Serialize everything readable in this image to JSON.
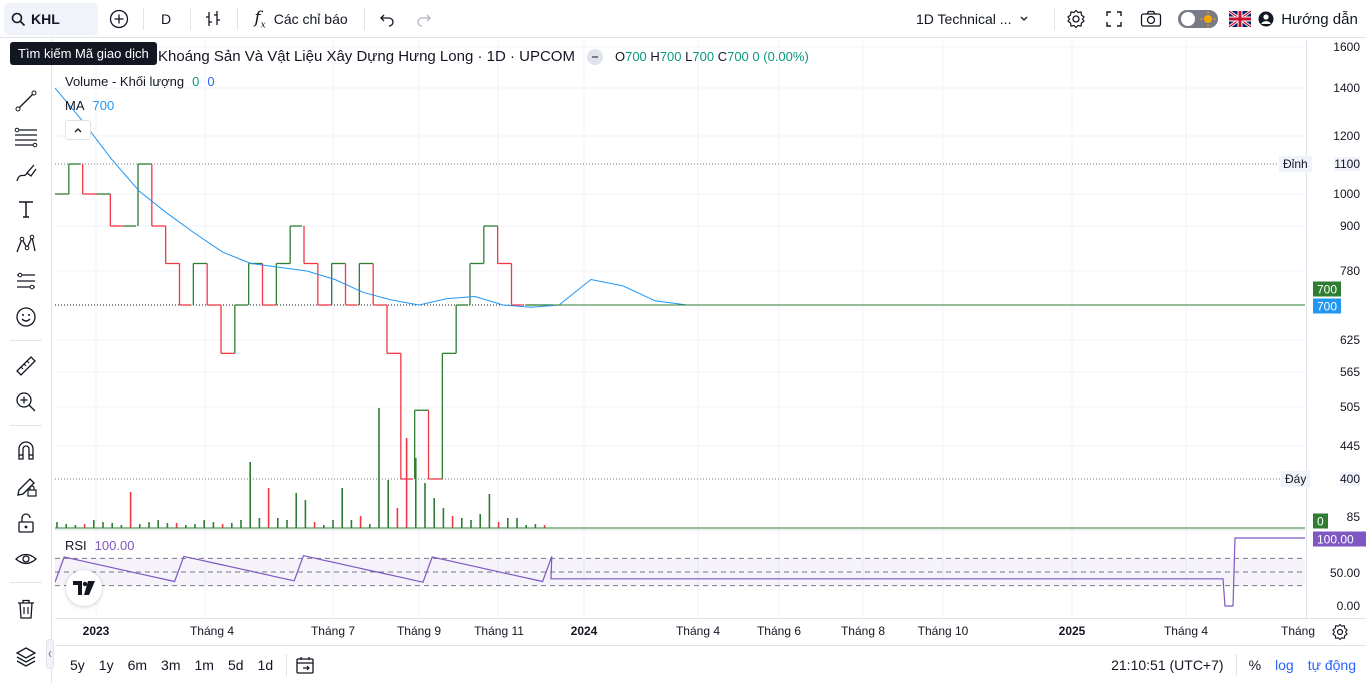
{
  "toolbar": {
    "symbol": "KHL",
    "interval": "D",
    "indicators_label": "Các chỉ báo",
    "layout_name": "1D Technical ...",
    "help_label": "Hướng dẫn",
    "tooltip": "Tìm kiếm Mã giao dịch"
  },
  "legend": {
    "title": "Khoáng Sản Và Vật Liệu Xây Dựng Hưng Long · 1D · UPCOM",
    "o_label": "O",
    "o": "700",
    "h_label": "H",
    "h": "700",
    "l_label": "L",
    "l": "700",
    "c_label": "C",
    "c": "700",
    "change": "0 (0.00%)"
  },
  "volume_legend": {
    "label": "Volume - Khối lượng",
    "v1": "0",
    "v2": "0"
  },
  "ma_legend": {
    "label": "MA",
    "value": "700"
  },
  "rsi_legend": {
    "label": "RSI",
    "value": "100.00"
  },
  "price_scale": {
    "ticks": [
      "1600",
      "1400",
      "1200",
      "1000",
      "900",
      "780",
      "625",
      "565",
      "505",
      "445",
      "400"
    ],
    "ticks_rsi": [
      "100.00",
      "50.00",
      "0.00"
    ],
    "high_label": "Đỉnh",
    "high_value": "1100",
    "low_label": "Đáy",
    "low_value": "400",
    "last_price": "700",
    "ma_price": "700",
    "volume_value": "0",
    "partial_tick": "85",
    "rsi_badge": "100.00"
  },
  "time_scale": [
    "2023",
    "Tháng 4",
    "Tháng 7",
    "Tháng 9",
    "Tháng 11",
    "2024",
    "Tháng 4",
    "Tháng 6",
    "Tháng 8",
    "Tháng 10",
    "2025",
    "Tháng 4",
    "Tháng"
  ],
  "bottom": {
    "ranges": [
      "5y",
      "1y",
      "6m",
      "3m",
      "1m",
      "5d",
      "1d"
    ],
    "clock": "21:10:51 (UTC+7)",
    "percent": "%",
    "log": "log",
    "auto": "tự động"
  },
  "colors": {
    "up": "#089981",
    "down": "#f23645",
    "bar_up": "#2e7d32",
    "ma": "#2196f3",
    "rsi": "#7e57c2",
    "accent": "#2962ff"
  },
  "chart_data": {
    "type": "line",
    "title": "Khoáng Sản Và Vật Liệu Xây Dựng Hưng Long · 1D · UPCOM",
    "price_range": [
      355,
      1640
    ],
    "series": [
      {
        "name": "",
        "values": [
          1000,
          1100,
          1000,
          1000,
          900,
          900,
          1100,
          900,
          800,
          700,
          800,
          700,
          600,
          700,
          800,
          700,
          800,
          900,
          800,
          700,
          800,
          700,
          800,
          700,
          600,
          400,
          500,
          400,
          600,
          700,
          800,
          900,
          800,
          700,
          700,
          700
        ]
      },
      {
        "name": "MA",
        "values": [
          1400,
          1260,
          1120,
          1010,
          940,
          880,
          830,
          800,
          790,
          780,
          760,
          730,
          712,
          700,
          715,
          720,
          700,
          695,
          700,
          760,
          745,
          710,
          700,
          700
        ]
      }
    ],
    "rsi": {
      "name": "RSI",
      "range": [
        0,
        100
      ],
      "levels": [
        70,
        50,
        30
      ],
      "last": 100
    }
  }
}
